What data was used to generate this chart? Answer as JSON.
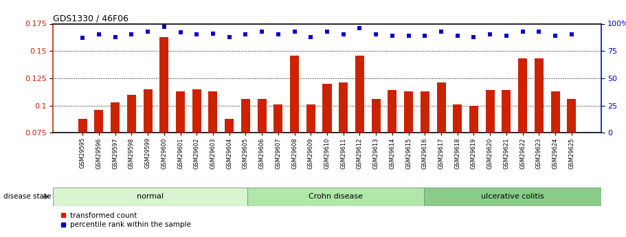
{
  "title": "GDS1330 / 46F06",
  "samples": [
    "GSM29595",
    "GSM29596",
    "GSM29597",
    "GSM29598",
    "GSM29599",
    "GSM29600",
    "GSM29601",
    "GSM29602",
    "GSM29603",
    "GSM29604",
    "GSM29605",
    "GSM29606",
    "GSM29607",
    "GSM29608",
    "GSM29609",
    "GSM29610",
    "GSM29611",
    "GSM29612",
    "GSM29613",
    "GSM29614",
    "GSM29615",
    "GSM29616",
    "GSM29617",
    "GSM29618",
    "GSM29619",
    "GSM29620",
    "GSM29621",
    "GSM29622",
    "GSM29623",
    "GSM29624",
    "GSM29625"
  ],
  "bar_values": [
    0.0875,
    0.096,
    0.103,
    0.11,
    0.115,
    0.163,
    0.113,
    0.115,
    0.113,
    0.088,
    0.106,
    0.106,
    0.101,
    0.146,
    0.101,
    0.12,
    0.121,
    0.146,
    0.106,
    0.114,
    0.113,
    0.113,
    0.121,
    0.101,
    0.1,
    0.114,
    0.114,
    0.143,
    0.143,
    0.113,
    0.106
  ],
  "percentile_values": [
    87,
    90,
    88,
    90,
    93,
    97,
    92,
    90,
    91,
    88,
    90,
    93,
    90,
    93,
    88,
    93,
    90,
    96,
    90,
    89,
    89,
    89,
    93,
    89,
    88,
    90,
    89,
    93,
    93,
    89,
    90
  ],
  "groups": [
    {
      "label": "normal",
      "start": 0,
      "end": 10,
      "color": "#d8f5d0"
    },
    {
      "label": "Crohn disease",
      "start": 11,
      "end": 20,
      "color": "#b8ebb0"
    },
    {
      "label": "ulcerative colitis",
      "start": 21,
      "end": 30,
      "color": "#88dd88"
    }
  ],
  "ylim_left": [
    0.075,
    0.175
  ],
  "ylim_right": [
    0,
    100
  ],
  "yticks_left": [
    0.075,
    0.1,
    0.125,
    0.15,
    0.175
  ],
  "yticks_right": [
    0,
    25,
    50,
    75,
    100
  ],
  "bar_color": "#cc2200",
  "dot_color": "#0000cc",
  "background_color": "#ffffff",
  "legend_bar": "transformed count",
  "legend_dot": "percentile rank within the sample",
  "disease_state_label": "disease state"
}
